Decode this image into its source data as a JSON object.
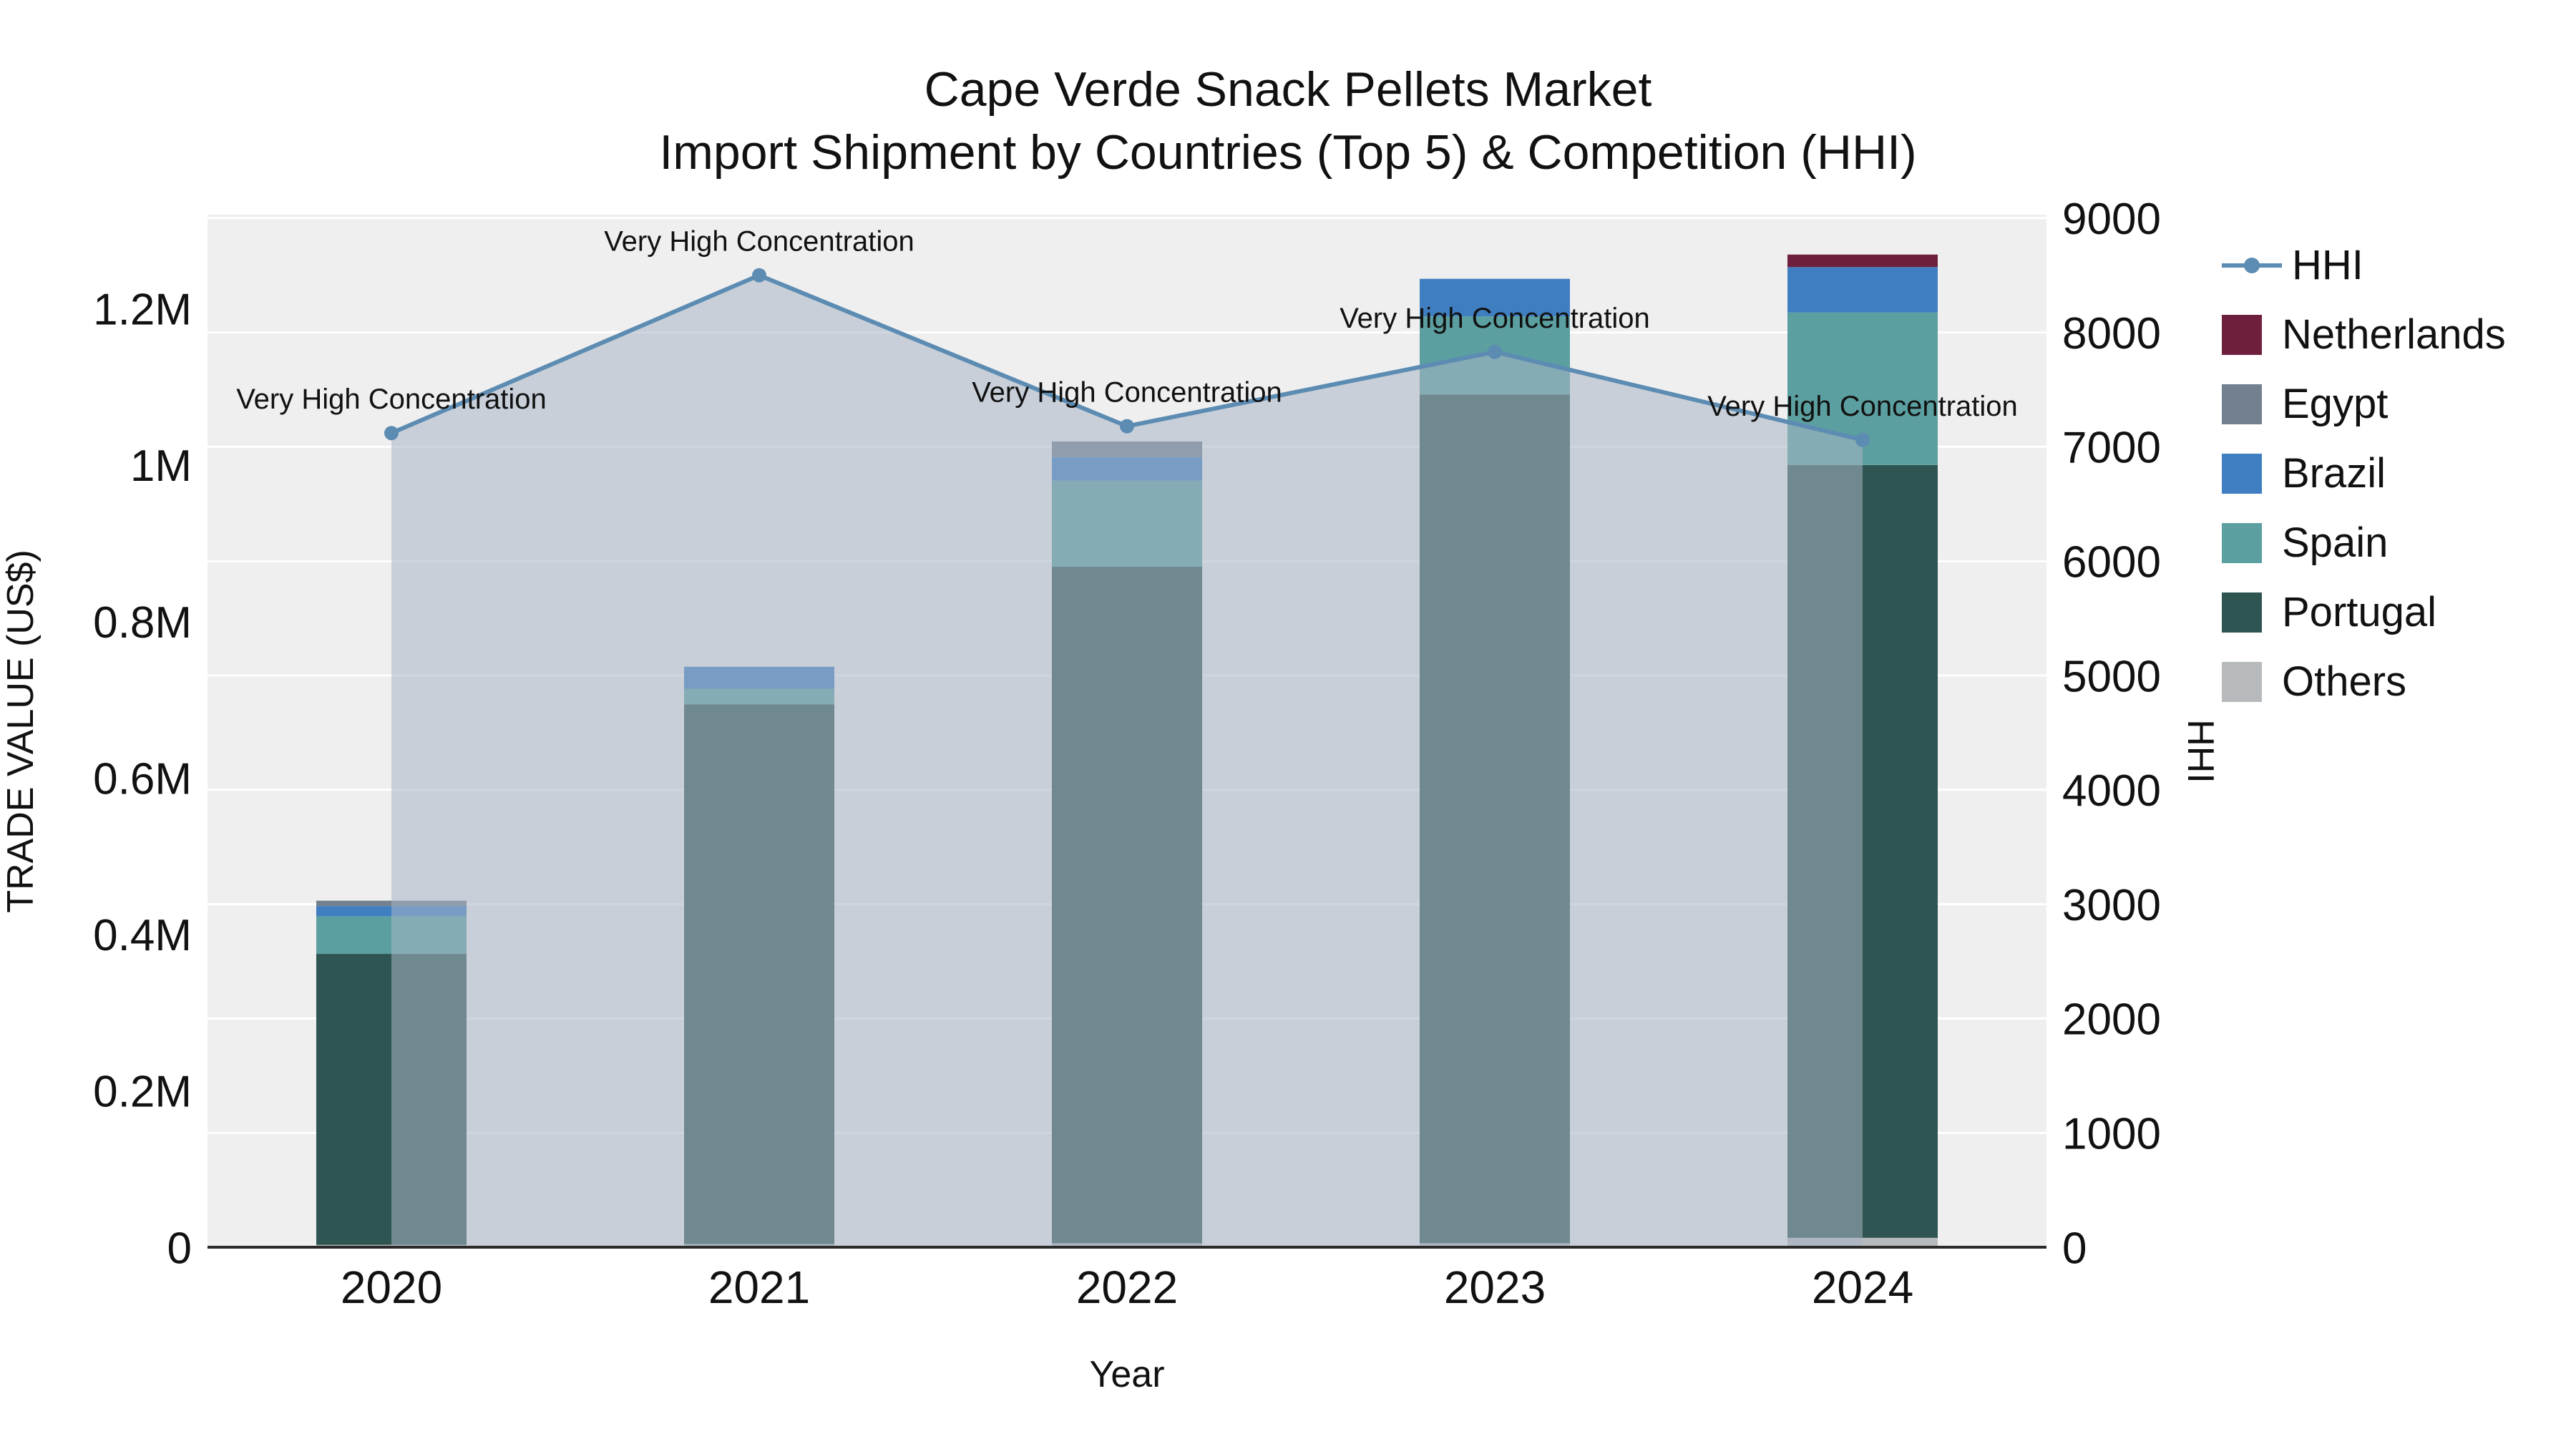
{
  "title": {
    "line1": "Cape Verde Snack Pellets Market",
    "line2": "Import Shipment by Countries (Top 5) & Competition (HHI)"
  },
  "axes": {
    "y_left_label": "TRADE VALUE (US$)",
    "y_right_label": "HHI",
    "x_label": "Year",
    "y_left_ticks": [
      {
        "v": 0,
        "label": "0"
      },
      {
        "v": 200000,
        "label": "0.2M"
      },
      {
        "v": 400000,
        "label": "0.4M"
      },
      {
        "v": 600000,
        "label": "0.6M"
      },
      {
        "v": 800000,
        "label": "0.8M"
      },
      {
        "v": 1000000,
        "label": "1M"
      },
      {
        "v": 1200000,
        "label": "1.2M"
      }
    ],
    "y_right_ticks": [
      {
        "v": 0,
        "label": "0"
      },
      {
        "v": 1000,
        "label": "1000"
      },
      {
        "v": 2000,
        "label": "2000"
      },
      {
        "v": 3000,
        "label": "3000"
      },
      {
        "v": 4000,
        "label": "4000"
      },
      {
        "v": 5000,
        "label": "5000"
      },
      {
        "v": 6000,
        "label": "6000"
      },
      {
        "v": 7000,
        "label": "7000"
      },
      {
        "v": 8000,
        "label": "8000"
      },
      {
        "v": 9000,
        "label": "9000"
      }
    ]
  },
  "legend": [
    {
      "label": "HHI",
      "color": "#5d8cb3",
      "type": "line"
    },
    {
      "label": "Netherlands",
      "color": "#6e1f3e",
      "type": "square"
    },
    {
      "label": "Egypt",
      "color": "#72808f",
      "type": "square"
    },
    {
      "label": "Brazil",
      "color": "#3f7ec0",
      "type": "square"
    },
    {
      "label": "Spain",
      "color": "#5c9fa0",
      "type": "square"
    },
    {
      "label": "Portugal",
      "color": "#2e5551",
      "type": "square"
    },
    {
      "label": "Others",
      "color": "#b7babc",
      "type": "square"
    }
  ],
  "chart_data": {
    "type": "stacked_bar+line",
    "title": "Cape Verde Snack Pellets Market — Import Shipment by Countries (Top 5) & Competition (HHI)",
    "categories": [
      "2020",
      "2021",
      "2022",
      "2023",
      "2024"
    ],
    "xlabel": "Year",
    "ylabel_left": "TRADE VALUE (US$)",
    "ylabel_right": "HHI",
    "y_left_range": [
      0,
      1320000
    ],
    "y_right_range": [
      0,
      9030
    ],
    "grid": "horizontal-white",
    "legend_position": "right",
    "bar_series_bottom_up": [
      {
        "name": "Others",
        "color": "#b7babc",
        "values": [
          3000,
          4000,
          5000,
          5000,
          12000
        ]
      },
      {
        "name": "Portugal",
        "color": "#2e5551",
        "values": [
          372000,
          690000,
          865000,
          1085000,
          988000
        ]
      },
      {
        "name": "Spain",
        "color": "#5c9fa0",
        "values": [
          48000,
          20000,
          110000,
          100000,
          195000
        ]
      },
      {
        "name": "Brazil",
        "color": "#3f7ec0",
        "values": [
          13000,
          28000,
          30000,
          48000,
          58000
        ]
      },
      {
        "name": "Egypt",
        "color": "#72808f",
        "values": [
          7000,
          0,
          20000,
          0,
          0
        ]
      },
      {
        "name": "Netherlands",
        "color": "#6e1f3e",
        "values": [
          0,
          0,
          0,
          0,
          16000
        ]
      }
    ],
    "line_series": {
      "name": "HHI",
      "color": "#5d8cb3",
      "area_fill": "rgba(168,180,197,0.55)",
      "values": [
        7120,
        8500,
        7180,
        7830,
        7060
      ]
    },
    "annotations": [
      "Very High Concentration",
      "Very High Concentration",
      "Very High Concentration",
      "Very High Concentration",
      "Very High Concentration"
    ],
    "plot_background": "#efefef",
    "gridline_color": "#ffffff",
    "axis_line_color": "#2a2a2a"
  }
}
